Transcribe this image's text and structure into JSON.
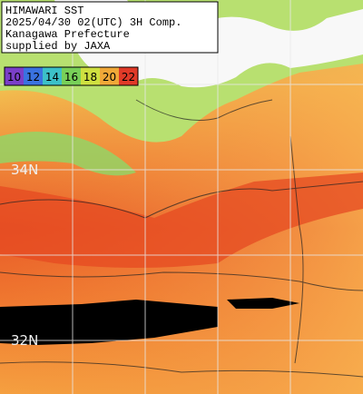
{
  "header": {
    "lines": [
      "HIMAWARI SST",
      "2025/04/30 02(UTC) 3H Comp.",
      "Kanagawa Prefecture",
      "supplied by JAXA"
    ]
  },
  "legend": {
    "labels": [
      "10",
      "12",
      "14",
      "16",
      "18",
      "20",
      "22"
    ],
    "colors": [
      "#7a3fc8",
      "#3a72e0",
      "#3cc0c8",
      "#78d058",
      "#cfe040",
      "#f0a838",
      "#e03a28"
    ]
  },
  "grid": {
    "labels": [
      "34N",
      "32N"
    ]
  }
}
